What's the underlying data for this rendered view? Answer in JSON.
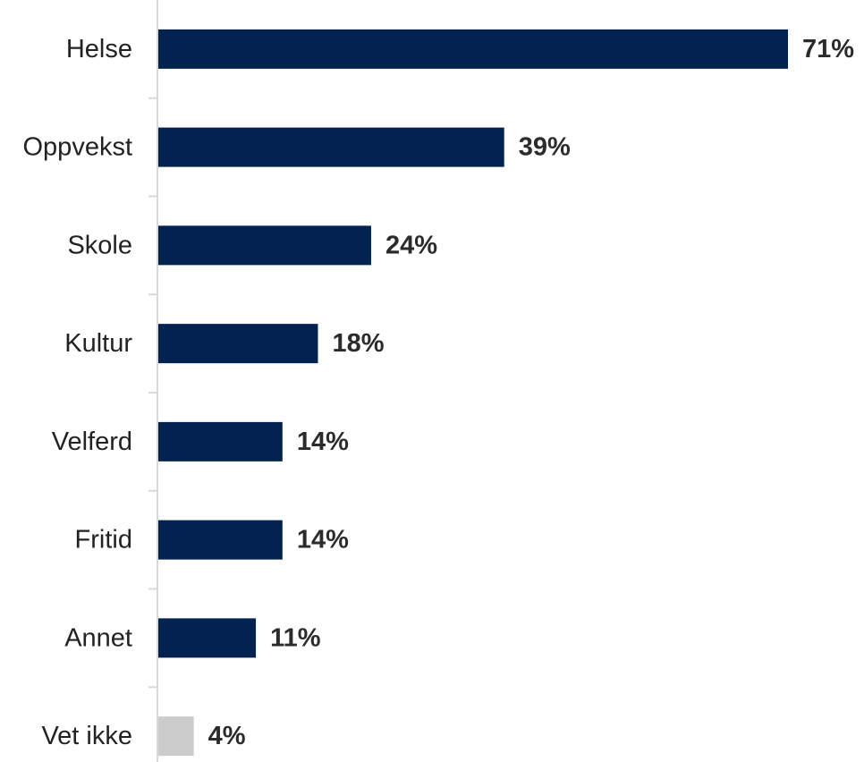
{
  "chart_data": {
    "type": "bar",
    "orientation": "horizontal",
    "categories": [
      "Helse",
      "Oppvekst",
      "Skole",
      "Kultur",
      "Velferd",
      "Fritid",
      "Annet",
      "Vet ikke"
    ],
    "values": [
      71,
      39,
      24,
      18,
      14,
      14,
      11,
      4
    ],
    "value_labels": [
      "71%",
      "39%",
      "24%",
      "18%",
      "14%",
      "14%",
      "11%",
      "4%"
    ],
    "unit": "%",
    "xlim": [
      0,
      71
    ],
    "title": "",
    "xlabel": "",
    "ylabel": "",
    "grid": false,
    "legend": "none",
    "colors": {
      "primary": "#02234f",
      "highlight_last": "#cccccc",
      "axis": "#d9d9d9"
    }
  }
}
